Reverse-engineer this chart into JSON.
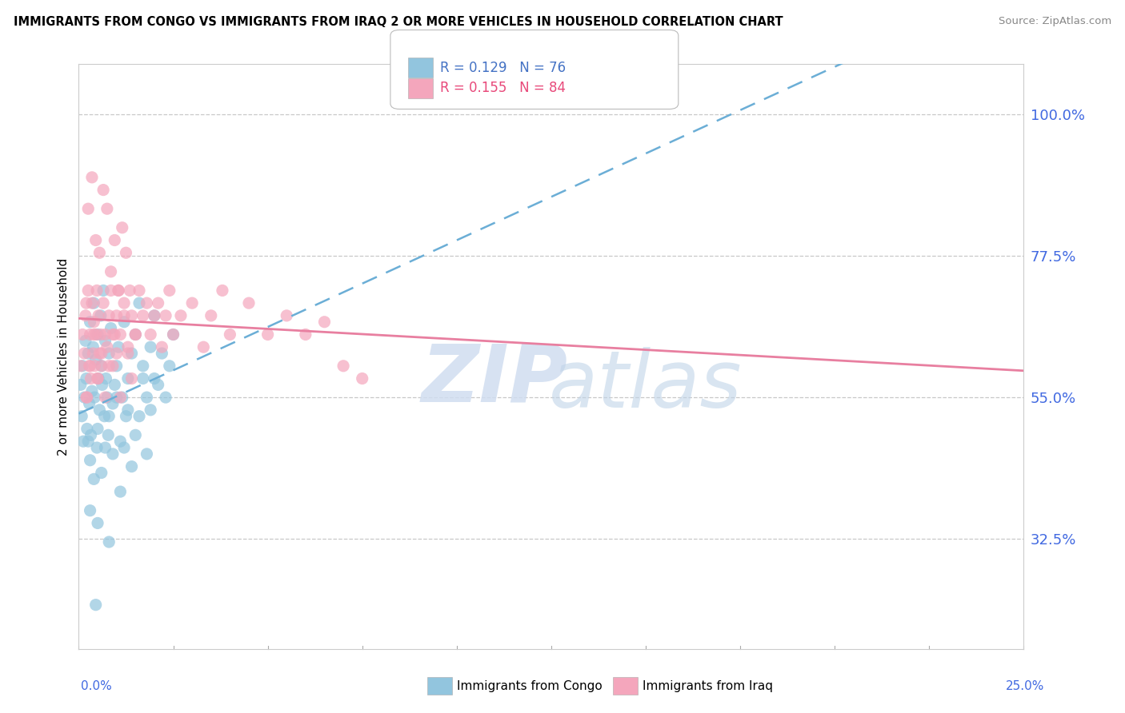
{
  "title": "IMMIGRANTS FROM CONGO VS IMMIGRANTS FROM IRAQ 2 OR MORE VEHICLES IN HOUSEHOLD CORRELATION CHART",
  "source": "Source: ZipAtlas.com",
  "ylabel_text": "2 or more Vehicles in Household",
  "legend_congo": "R = 0.129   N = 76",
  "legend_iraq": "R = 0.155   N = 84",
  "legend_bottom_congo": "Immigrants from Congo",
  "legend_bottom_iraq": "Immigrants from Iraq",
  "color_congo": "#92c5de",
  "color_iraq": "#f4a6bc",
  "color_congo_line": "#6baed6",
  "color_iraq_line": "#e87fa0",
  "color_legend_congo": "#4472c4",
  "color_legend_iraq": "#e8497a",
  "color_axis_labels": "#4169e1",
  "xlim": [
    0.0,
    25.0
  ],
  "ylim": [
    15.0,
    108.0
  ],
  "ytick_vals": [
    32.5,
    55.0,
    77.5,
    100.0
  ],
  "ytick_labels": [
    "32.5%",
    "55.0%",
    "77.5%",
    "100.0%"
  ],
  "congo_x": [
    0.05,
    0.08,
    0.1,
    0.12,
    0.15,
    0.18,
    0.2,
    0.22,
    0.25,
    0.28,
    0.3,
    0.32,
    0.35,
    0.38,
    0.4,
    0.42,
    0.45,
    0.48,
    0.5,
    0.52,
    0.55,
    0.58,
    0.6,
    0.62,
    0.65,
    0.68,
    0.7,
    0.72,
    0.75,
    0.78,
    0.8,
    0.85,
    0.9,
    0.95,
    1.0,
    1.05,
    1.1,
    1.15,
    1.2,
    1.25,
    1.3,
    1.4,
    1.5,
    1.6,
    1.7,
    1.8,
    1.9,
    2.0,
    2.1,
    2.2,
    2.3,
    2.4,
    2.5,
    0.25,
    0.3,
    0.4,
    0.5,
    0.6,
    0.7,
    0.8,
    0.9,
    1.0,
    1.1,
    1.2,
    1.3,
    1.4,
    1.5,
    1.6,
    1.7,
    1.8,
    1.9,
    2.0,
    0.3,
    0.5,
    0.8,
    0.45
  ],
  "congo_y": [
    57,
    52,
    60,
    48,
    55,
    64,
    58,
    50,
    62,
    54,
    67,
    49,
    56,
    63,
    70,
    55,
    61,
    47,
    65,
    58,
    53,
    68,
    60,
    57,
    72,
    52,
    64,
    58,
    55,
    49,
    62,
    66,
    54,
    57,
    60,
    63,
    48,
    55,
    67,
    52,
    58,
    62,
    65,
    70,
    60,
    55,
    63,
    68,
    57,
    62,
    55,
    60,
    65,
    48,
    45,
    42,
    50,
    43,
    47,
    52,
    46,
    55,
    40,
    47,
    53,
    44,
    49,
    52,
    58,
    46,
    53,
    58,
    37,
    35,
    32,
    22
  ],
  "iraq_x": [
    0.05,
    0.1,
    0.15,
    0.18,
    0.2,
    0.22,
    0.25,
    0.28,
    0.3,
    0.32,
    0.35,
    0.38,
    0.4,
    0.42,
    0.45,
    0.48,
    0.5,
    0.52,
    0.55,
    0.58,
    0.6,
    0.65,
    0.7,
    0.75,
    0.8,
    0.85,
    0.9,
    0.95,
    1.0,
    1.05,
    1.1,
    1.2,
    1.3,
    1.4,
    1.5,
    1.6,
    1.7,
    1.8,
    1.9,
    2.0,
    2.1,
    2.2,
    2.3,
    2.4,
    2.5,
    2.7,
    3.0,
    3.3,
    3.5,
    3.8,
    4.0,
    4.5,
    5.0,
    5.5,
    6.0,
    6.5,
    7.0,
    7.5,
    0.2,
    0.3,
    0.4,
    0.5,
    0.6,
    0.7,
    0.8,
    0.9,
    1.0,
    1.1,
    1.2,
    1.3,
    1.4,
    1.5,
    0.25,
    0.35,
    0.45,
    0.55,
    0.65,
    0.75,
    0.85,
    0.95,
    1.05,
    1.15,
    1.25,
    1.35
  ],
  "iraq_y": [
    60,
    65,
    62,
    68,
    70,
    55,
    72,
    60,
    65,
    58,
    70,
    62,
    67,
    60,
    65,
    72,
    58,
    68,
    62,
    65,
    60,
    70,
    65,
    63,
    68,
    72,
    60,
    65,
    68,
    72,
    65,
    70,
    63,
    68,
    65,
    72,
    68,
    70,
    65,
    68,
    70,
    63,
    68,
    72,
    65,
    68,
    70,
    63,
    68,
    72,
    65,
    70,
    65,
    68,
    65,
    67,
    60,
    58,
    55,
    60,
    65,
    58,
    62,
    55,
    60,
    65,
    62,
    55,
    68,
    62,
    58,
    65,
    85,
    90,
    80,
    78,
    88,
    85,
    75,
    80,
    72,
    82,
    78,
    72
  ]
}
